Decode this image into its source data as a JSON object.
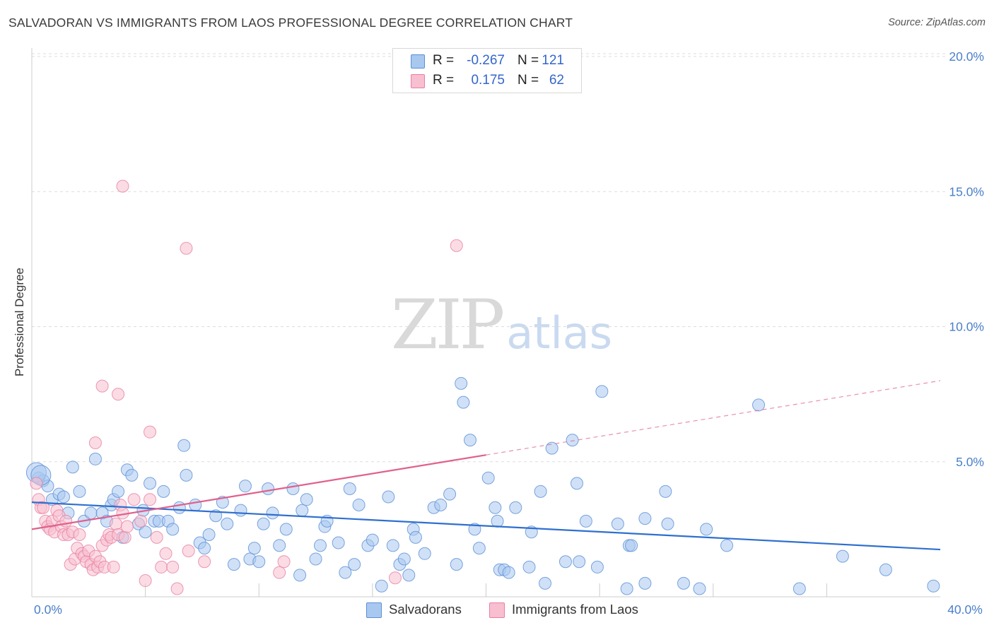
{
  "header": {
    "title": "SALVADORAN VS IMMIGRANTS FROM LAOS PROFESSIONAL DEGREE CORRELATION CHART",
    "source": "Source: ZipAtlas.com"
  },
  "watermark": {
    "zip": "ZIP",
    "atlas": "atlas"
  },
  "legend_top": {
    "rows": [
      {
        "r_label": "R =",
        "r_value": "-0.267",
        "n_label": "N =",
        "n_value": "121"
      },
      {
        "r_label": "R =",
        "r_value": "0.175",
        "n_label": "N =",
        "n_value": "62"
      }
    ]
  },
  "legend_bottom": {
    "series1": "Salvadorans",
    "series2": "Immigrants from Laos"
  },
  "colors": {
    "blue_fill": "#a9c8f0",
    "blue_stroke": "#5b8fd6",
    "blue_line": "#2f6fcf",
    "pink_fill": "#f7bfd0",
    "pink_stroke": "#e97fa1",
    "pink_line": "#e0608c",
    "grid": "#dddddd",
    "tick_text": "#4a7fc9"
  },
  "chart_data": {
    "type": "scatter",
    "title": "SALVADORAN VS IMMIGRANTS FROM LAOS PROFESSIONAL DEGREE CORRELATION CHART",
    "xlabel": "",
    "ylabel": "Professional Degree",
    "xlim": [
      0,
      40
    ],
    "ylim": [
      0,
      20
    ],
    "x_tick_labels": [
      "0.0%",
      "40.0%"
    ],
    "y_ticks": [
      5,
      10,
      15,
      20
    ],
    "y_tick_labels": [
      "5.0%",
      "10.0%",
      "15.0%",
      "20.0%"
    ],
    "grid": true,
    "legend_position": "top-center",
    "series": [
      {
        "name": "Salvadorans",
        "R": -0.267,
        "N": 121,
        "trendline": {
          "x": [
            0,
            40
          ],
          "y": [
            3.5,
            1.75
          ],
          "dashed_from": null
        },
        "points": [
          [
            0.3,
            4.4
          ],
          [
            0.5,
            4.3
          ],
          [
            0.7,
            4.1
          ],
          [
            0.9,
            3.6
          ],
          [
            1.2,
            3.8
          ],
          [
            1.4,
            3.7
          ],
          [
            1.6,
            3.1
          ],
          [
            1.8,
            4.8
          ],
          [
            2.1,
            3.9
          ],
          [
            2.3,
            2.8
          ],
          [
            2.6,
            3.1
          ],
          [
            2.8,
            5.1
          ],
          [
            3.1,
            3.1
          ],
          [
            3.3,
            2.8
          ],
          [
            3.5,
            3.4
          ],
          [
            3.6,
            3.6
          ],
          [
            3.8,
            3.9
          ],
          [
            4.0,
            2.2
          ],
          [
            4.2,
            4.7
          ],
          [
            4.4,
            4.5
          ],
          [
            4.7,
            2.7
          ],
          [
            4.9,
            3.2
          ],
          [
            5.0,
            2.4
          ],
          [
            5.2,
            4.2
          ],
          [
            5.4,
            2.8
          ],
          [
            5.6,
            2.8
          ],
          [
            5.8,
            3.9
          ],
          [
            6.0,
            2.8
          ],
          [
            6.2,
            2.5
          ],
          [
            6.5,
            3.3
          ],
          [
            6.7,
            5.6
          ],
          [
            6.8,
            4.5
          ],
          [
            7.2,
            3.4
          ],
          [
            7.4,
            2.0
          ],
          [
            7.6,
            1.8
          ],
          [
            7.8,
            2.3
          ],
          [
            8.1,
            3.0
          ],
          [
            8.4,
            3.5
          ],
          [
            8.6,
            2.7
          ],
          [
            8.9,
            1.2
          ],
          [
            9.2,
            3.2
          ],
          [
            9.4,
            4.1
          ],
          [
            9.6,
            1.4
          ],
          [
            9.8,
            1.8
          ],
          [
            10.0,
            1.3
          ],
          [
            10.2,
            2.7
          ],
          [
            10.4,
            4.0
          ],
          [
            10.6,
            3.1
          ],
          [
            10.9,
            1.9
          ],
          [
            11.2,
            2.5
          ],
          [
            11.5,
            4.0
          ],
          [
            11.8,
            0.8
          ],
          [
            11.9,
            3.2
          ],
          [
            12.1,
            3.6
          ],
          [
            12.5,
            1.4
          ],
          [
            12.7,
            1.9
          ],
          [
            12.9,
            2.6
          ],
          [
            13.0,
            2.8
          ],
          [
            13.5,
            2.0
          ],
          [
            13.8,
            0.9
          ],
          [
            14.0,
            4.0
          ],
          [
            14.2,
            1.2
          ],
          [
            14.4,
            3.4
          ],
          [
            14.8,
            1.9
          ],
          [
            15.0,
            2.1
          ],
          [
            15.4,
            0.4
          ],
          [
            15.7,
            3.7
          ],
          [
            15.9,
            1.9
          ],
          [
            16.2,
            1.2
          ],
          [
            16.4,
            1.4
          ],
          [
            16.6,
            0.8
          ],
          [
            16.8,
            2.5
          ],
          [
            16.9,
            2.2
          ],
          [
            17.3,
            1.6
          ],
          [
            17.7,
            3.3
          ],
          [
            18.0,
            3.4
          ],
          [
            18.4,
            3.8
          ],
          [
            18.7,
            1.2
          ],
          [
            18.9,
            7.9
          ],
          [
            19.0,
            7.2
          ],
          [
            19.3,
            5.8
          ],
          [
            19.5,
            2.5
          ],
          [
            19.7,
            1.8
          ],
          [
            20.1,
            4.4
          ],
          [
            20.4,
            3.3
          ],
          [
            20.5,
            2.8
          ],
          [
            20.6,
            1.0
          ],
          [
            20.8,
            1.0
          ],
          [
            21.0,
            0.9
          ],
          [
            21.3,
            3.3
          ],
          [
            21.9,
            1.1
          ],
          [
            22.0,
            2.4
          ],
          [
            22.4,
            3.9
          ],
          [
            22.6,
            0.5
          ],
          [
            22.9,
            5.5
          ],
          [
            23.5,
            1.3
          ],
          [
            23.8,
            5.8
          ],
          [
            24.0,
            4.2
          ],
          [
            24.1,
            1.3
          ],
          [
            24.4,
            2.8
          ],
          [
            24.9,
            1.1
          ],
          [
            25.1,
            7.6
          ],
          [
            25.8,
            2.7
          ],
          [
            26.2,
            0.3
          ],
          [
            26.3,
            1.9
          ],
          [
            26.4,
            1.9
          ],
          [
            27.0,
            2.9
          ],
          [
            27.0,
            0.5
          ],
          [
            27.9,
            3.9
          ],
          [
            28.0,
            2.7
          ],
          [
            28.7,
            0.5
          ],
          [
            29.4,
            0.3
          ],
          [
            29.7,
            2.5
          ],
          [
            30.6,
            1.9
          ],
          [
            32.0,
            7.1
          ],
          [
            33.8,
            0.3
          ],
          [
            35.7,
            1.5
          ],
          [
            37.6,
            1.0
          ],
          [
            39.7,
            0.4
          ],
          [
            0.2,
            4.6
          ],
          [
            0.4,
            4.5
          ]
        ]
      },
      {
        "name": "Immigrants from Laos",
        "R": 0.175,
        "N": 62,
        "trendline": {
          "x": [
            0,
            40
          ],
          "y": [
            2.5,
            8.0
          ],
          "dashed_from": 20
        },
        "points": [
          [
            0.2,
            4.2
          ],
          [
            0.3,
            3.6
          ],
          [
            0.4,
            3.3
          ],
          [
            0.5,
            3.3
          ],
          [
            0.6,
            2.8
          ],
          [
            0.7,
            2.6
          ],
          [
            0.8,
            2.5
          ],
          [
            0.9,
            2.8
          ],
          [
            1.0,
            2.4
          ],
          [
            1.1,
            3.2
          ],
          [
            1.2,
            3.0
          ],
          [
            1.3,
            2.6
          ],
          [
            1.4,
            2.3
          ],
          [
            1.5,
            2.8
          ],
          [
            1.6,
            2.3
          ],
          [
            1.7,
            1.2
          ],
          [
            1.8,
            2.4
          ],
          [
            1.9,
            1.4
          ],
          [
            2.0,
            1.8
          ],
          [
            2.1,
            2.3
          ],
          [
            2.2,
            1.6
          ],
          [
            2.3,
            1.5
          ],
          [
            2.4,
            1.3
          ],
          [
            2.5,
            1.7
          ],
          [
            2.6,
            1.2
          ],
          [
            2.7,
            1.0
          ],
          [
            2.8,
            1.5
          ],
          [
            2.9,
            1.1
          ],
          [
            3.0,
            1.3
          ],
          [
            3.1,
            1.9
          ],
          [
            3.2,
            1.1
          ],
          [
            3.3,
            2.1
          ],
          [
            3.4,
            2.3
          ],
          [
            3.5,
            2.2
          ],
          [
            3.6,
            1.1
          ],
          [
            3.7,
            2.7
          ],
          [
            3.8,
            2.3
          ],
          [
            3.9,
            3.4
          ],
          [
            4.0,
            3.1
          ],
          [
            4.1,
            2.2
          ],
          [
            4.2,
            2.6
          ],
          [
            4.5,
            3.6
          ],
          [
            4.8,
            2.8
          ],
          [
            5.0,
            0.6
          ],
          [
            5.2,
            3.6
          ],
          [
            5.5,
            2.2
          ],
          [
            5.7,
            1.1
          ],
          [
            5.9,
            1.6
          ],
          [
            6.2,
            1.1
          ],
          [
            6.4,
            0.3
          ],
          [
            6.9,
            1.7
          ],
          [
            7.6,
            1.3
          ],
          [
            10.9,
            0.9
          ],
          [
            11.1,
            1.3
          ],
          [
            16.0,
            0.7
          ],
          [
            18.7,
            13.0
          ],
          [
            2.8,
            5.7
          ],
          [
            3.1,
            7.8
          ],
          [
            3.8,
            7.5
          ],
          [
            4.0,
            15.2
          ],
          [
            6.8,
            12.9
          ],
          [
            5.2,
            6.1
          ]
        ]
      }
    ]
  }
}
